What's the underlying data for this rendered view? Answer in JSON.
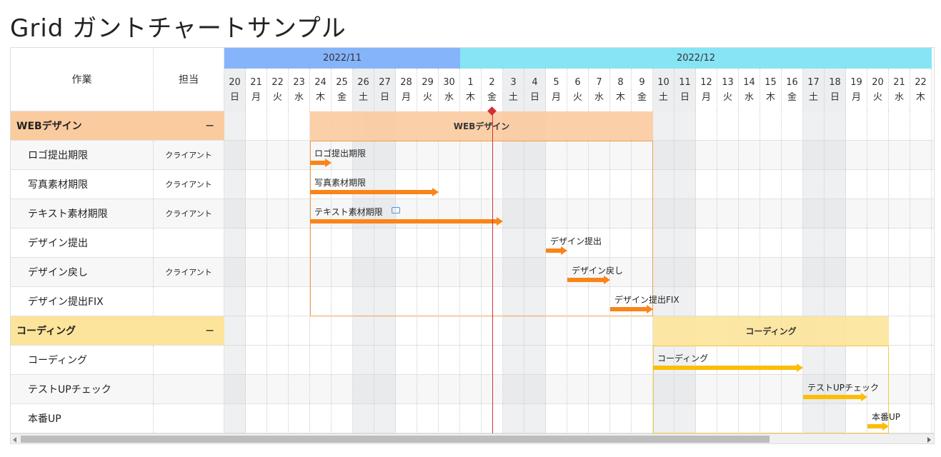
{
  "title": "Grid ガントチャートサンプル",
  "header": {
    "task_col": "作業",
    "owner_col": "担当"
  },
  "months": [
    {
      "label": "2022/11",
      "color": "#86b4fb",
      "days": 11
    },
    {
      "label": "2022/12",
      "color": "#86e4f5",
      "days": 22
    }
  ],
  "days": [
    {
      "d": "20",
      "w": "日",
      "off": true
    },
    {
      "d": "21",
      "w": "月"
    },
    {
      "d": "22",
      "w": "火"
    },
    {
      "d": "23",
      "w": "水"
    },
    {
      "d": "24",
      "w": "木"
    },
    {
      "d": "25",
      "w": "金"
    },
    {
      "d": "26",
      "w": "土",
      "off": true
    },
    {
      "d": "27",
      "w": "日",
      "off": true
    },
    {
      "d": "28",
      "w": "月"
    },
    {
      "d": "29",
      "w": "火"
    },
    {
      "d": "30",
      "w": "水"
    },
    {
      "d": "1",
      "w": "木"
    },
    {
      "d": "2",
      "w": "金"
    },
    {
      "d": "3",
      "w": "土",
      "off": true
    },
    {
      "d": "4",
      "w": "日",
      "off": true
    },
    {
      "d": "5",
      "w": "月"
    },
    {
      "d": "6",
      "w": "火"
    },
    {
      "d": "7",
      "w": "水"
    },
    {
      "d": "8",
      "w": "木"
    },
    {
      "d": "9",
      "w": "金"
    },
    {
      "d": "10",
      "w": "土",
      "off": true
    },
    {
      "d": "11",
      "w": "日",
      "off": true
    },
    {
      "d": "12",
      "w": "月"
    },
    {
      "d": "13",
      "w": "火"
    },
    {
      "d": "14",
      "w": "水"
    },
    {
      "d": "15",
      "w": "木"
    },
    {
      "d": "16",
      "w": "金"
    },
    {
      "d": "17",
      "w": "土",
      "off": true
    },
    {
      "d": "18",
      "w": "日",
      "off": true
    },
    {
      "d": "19",
      "w": "月"
    },
    {
      "d": "20",
      "w": "火"
    },
    {
      "d": "21",
      "w": "水"
    },
    {
      "d": "22",
      "w": "木"
    }
  ],
  "today_index": 12,
  "groups": [
    {
      "name": "WEBデザイン",
      "toggle": "−",
      "color": "#fbcba0",
      "bar_color": "#fa8419",
      "outline": "#f0a050",
      "start": 4,
      "end": 19,
      "tasks": [
        {
          "name": "ロゴ提出期限",
          "owner": "クライアント",
          "start": 4,
          "end": 4
        },
        {
          "name": "写真素材期限",
          "owner": "クライアント",
          "start": 4,
          "end": 9
        },
        {
          "name": "テキスト素材期限",
          "owner": "クライアント",
          "start": 4,
          "end": 12,
          "comment": true
        },
        {
          "name": "デザイン提出",
          "owner": "",
          "start": 15,
          "end": 15
        },
        {
          "name": "デザイン戻し",
          "owner": "クライアント",
          "start": 16,
          "end": 17
        },
        {
          "name": "デザイン提出FIX",
          "owner": "",
          "start": 18,
          "end": 19
        }
      ]
    },
    {
      "name": "コーディング",
      "toggle": "−",
      "color": "#fce49a",
      "bar_color": "#fbbd08",
      "outline": "#f5c842",
      "start": 20,
      "end": 30,
      "tasks": [
        {
          "name": "コーディング",
          "owner": "",
          "start": 20,
          "end": 26
        },
        {
          "name": "テストUPチェック",
          "owner": "",
          "start": 27,
          "end": 29
        },
        {
          "name": "本番UP",
          "owner": "",
          "start": 30,
          "end": 30
        }
      ]
    }
  ],
  "icons": {
    "comment": "comment-icon",
    "today": "today-marker-icon"
  }
}
